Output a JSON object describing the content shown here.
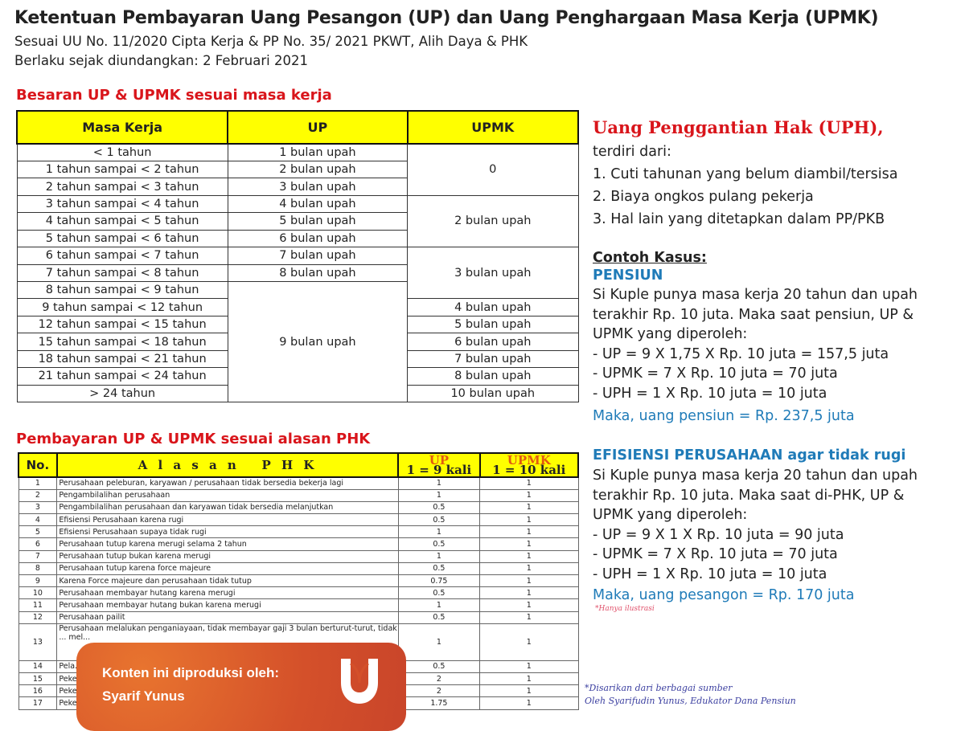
{
  "header": {
    "title": "Ketentuan Pembayaran Uang Pesangon (UP) dan Uang Penghargaan Masa Kerja (UPMK)",
    "line1": "Sesuai UU No. 11/2020 Cipta Kerja & PP No. 35/ 2021 PKWT, Alih  Daya & PHK",
    "line2": "Berlaku sejak diundangkan: 2 Februari 2021"
  },
  "table1": {
    "heading": "Besaran UP & UPMK sesuai masa kerja",
    "columns": [
      "Masa Kerja",
      "UP",
      "UPMK"
    ],
    "masa": [
      "< 1 tahun",
      "1 tahun sampai < 2 tahun",
      "2 tahun sampai < 3 tahun",
      "3 tahun sampai < 4 tahun",
      "4 tahun sampai < 5 tahun",
      "5 tahun sampai < 6 tahun",
      "6 tahun sampai < 7 tahun",
      "7 tahun sampai < 8 tahun",
      "8 tahun sampai < 9 tahun",
      "9 tahun sampai < 12 tahun",
      "12 tahun sampai < 15 tahun",
      "15 tahun sampai < 18 tahun",
      "18 tahun sampai < 21 tahun",
      "21 tahun sampai < 24 tahun",
      "> 24 tahun"
    ],
    "up": [
      "1 bulan upah",
      "2 bulan upah",
      "3 bulan upah",
      "4 bulan upah",
      "5 bulan upah",
      "6 bulan upah",
      "7 bulan upah",
      "8 bulan upah",
      "9 bulan upah"
    ],
    "upmk": [
      "0",
      "2 bulan upah",
      "3 bulan upah",
      "4 bulan upah",
      "5 bulan upah",
      "6 bulan upah",
      "7 bulan upah",
      "8 bulan upah",
      "10 bulan upah"
    ]
  },
  "table2": {
    "heading": "Pembayaran UP & UPMK sesuai alasan PHK",
    "col_no": "No.",
    "col_alasan": "A l a s a n   P H K",
    "col_up": "UP",
    "col_up_sub": "1 = 9 kali",
    "col_upmk": "UPMK",
    "col_upmk_sub": "1 = 10 kali",
    "rows": [
      {
        "no": "1",
        "alasan": "Perusahaan peleburan, karyawan / perusahaan tidak bersedia bekerja lagi",
        "up": "1",
        "upmk": "1"
      },
      {
        "no": "2",
        "alasan": "Pengambilalihan perusahaan",
        "up": "1",
        "upmk": "1"
      },
      {
        "no": "3",
        "alasan": "Pengambilalihan perusahaan dan karyawan tidak bersedia melanjutkan",
        "up": "0.5",
        "upmk": "1"
      },
      {
        "no": "4",
        "alasan": "Efisiensi Perusahaan karena rugi",
        "up": "0.5",
        "upmk": "1"
      },
      {
        "no": "5",
        "alasan": "Efisiensi Perusahaan supaya tidak rugi",
        "up": "1",
        "upmk": "1"
      },
      {
        "no": "6",
        "alasan": "Perusahaan tutup karena merugi selama 2 tahun",
        "up": "0.5",
        "upmk": "1"
      },
      {
        "no": "7",
        "alasan": "Perusahaan tutup bukan karena merugi",
        "up": "1",
        "upmk": "1"
      },
      {
        "no": "8",
        "alasan": "Perusahaan tutup karena force majeure",
        "up": "0.5",
        "upmk": "1"
      },
      {
        "no": "9",
        "alasan": "Karena Force majeure dan perusahaan tidak tutup",
        "up": "0.75",
        "upmk": "1"
      },
      {
        "no": "10",
        "alasan": "Perusahaan membayar hutang karena merugi",
        "up": "0.5",
        "upmk": "1"
      },
      {
        "no": "11",
        "alasan": "Perusahaan membayar hutang bukan karena merugi",
        "up": "1",
        "upmk": "1"
      },
      {
        "no": "12",
        "alasan": "Perusahaan pailit",
        "up": "0.5",
        "upmk": "1"
      },
      {
        "no": "13",
        "alasan": "Perusahaan melalukan penganiayaan, tidak membayar gaji 3 bulan berturut-turut, tidak ... mel...",
        "up": "1",
        "upmk": "1"
      },
      {
        "no": "14",
        "alasan": "Pela...",
        "up": "0.5",
        "upmk": "1"
      },
      {
        "no": "15",
        "alasan": "Peke...",
        "up": "2",
        "upmk": "1"
      },
      {
        "no": "16",
        "alasan": "Peke...",
        "up": "2",
        "upmk": "1"
      },
      {
        "no": "17",
        "alasan": "Peke...",
        "up": "1.75",
        "upmk": "1"
      }
    ]
  },
  "uph": {
    "title": "Uang Penggantian Hak (UPH),",
    "intro": "terdiri dari:",
    "items": [
      "1. Cuti tahunan  yang belum diambil/tersisa",
      "2. Biaya ongkos  pulang  pekerja",
      "3. Hal lain yang ditetapkan  dalam  PP/PKB"
    ]
  },
  "kasus": {
    "title": "Contoh Kasus:",
    "pensiun": {
      "label": "PENSIUN",
      "lines": [
        "Si Kuple punya masa kerja 20 tahun dan upah",
        "terakhir Rp. 10 juta. Maka saat pensiun, UP &",
        "UPMK yang diperoleh:",
        "- UP = 9 X 1,75 X Rp. 10 juta =  157,5 juta",
        "- UPMK = 7 X Rp. 10 juta = 70 juta",
        "- UPH = 1 X Rp. 10 juta = 10 juta"
      ],
      "result": "Maka, uang pensiun = Rp. 237,5 juta"
    },
    "efisiensi": {
      "label": "EFISIENSI PERUSAHAAN agar tidak rugi",
      "lines": [
        "Si Kuple punya masa kerja 20 tahun dan upah",
        "terakhir Rp. 10 juta. Maka saat di-PHK, UP &",
        "UPMK yang diperoleh:",
        "- UP = 9 X 1 X Rp. 10 juta = 90 juta",
        "- UPMK = 7 X Rp. 10 juta = 70 juta",
        "- UPH = 1 X Rp. 10 juta = 10 juta"
      ],
      "result": "Maka, uang pesangon = Rp. 170 juta"
    },
    "note": "*Hanya ilustrasi"
  },
  "footer": {
    "line1": "*Disarikan  dari berbagai sumber",
    "line2": "Oleh Syarifudin  Yunus,  Edukator Dana Pensiun"
  },
  "overlay": {
    "line1": "Konten ini diproduksi oleh:",
    "line2": "Syarif Yunus"
  },
  "colors": {
    "yellow": "#ffff00",
    "red": "#d9151b",
    "blue": "#1f7bb8",
    "overlay": "#d4502a"
  }
}
